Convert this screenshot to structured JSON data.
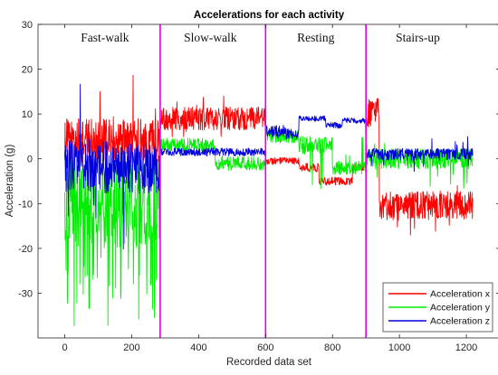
{
  "chart_data": {
    "type": "line",
    "title": "Accelerations for each activity",
    "xlabel": "Recorded data set",
    "ylabel": "Acceleration (g)",
    "xlim": [
      -80,
      1300
    ],
    "ylim": [
      -40,
      30
    ],
    "xticks": [
      0,
      200,
      400,
      600,
      800,
      1000,
      1200
    ],
    "yticks": [
      30,
      20,
      10,
      0,
      -10,
      -20,
      -30
    ],
    "grid": false,
    "legend_position": "bottom-right",
    "boundaries": {
      "values": [
        285,
        600,
        900
      ],
      "color": "#e000e0"
    },
    "activities": [
      {
        "label": "Fast-walk",
        "x": 120
      },
      {
        "label": "Slow-walk",
        "x": 435
      },
      {
        "label": "Resting",
        "x": 750
      },
      {
        "label": "Stairs-up",
        "x": 1055
      }
    ],
    "series": [
      {
        "name": "Acceleration x",
        "color": "#ff0000",
        "segments": [
          {
            "x_start": 0,
            "x_end": 285,
            "mean": 4,
            "noise": 5,
            "spike_prob": 0.06,
            "spike_range": [
              -6,
              19
            ]
          },
          {
            "x_start": 285,
            "x_end": 600,
            "mean": 9,
            "noise": 2.6,
            "spike_prob": 0.03,
            "spike_range": [
              3,
              14
            ]
          },
          {
            "x_start": 600,
            "x_end": 700,
            "mean": -0.5,
            "noise": 0.8
          },
          {
            "x_start": 700,
            "x_end": 760,
            "mean": -2,
            "noise": 1.0
          },
          {
            "x_start": 760,
            "x_end": 860,
            "mean": -5,
            "noise": 0.9
          },
          {
            "x_start": 860,
            "x_end": 900,
            "mean": -2,
            "noise": 0.8
          },
          {
            "x_start": 900,
            "x_end": 940,
            "mean": 10,
            "noise": 3.5
          },
          {
            "x_start": 940,
            "x_end": 1220,
            "mean": -10.5,
            "noise": 3.2,
            "spike_prob": 0.04,
            "spike_range": [
              -18,
              -4
            ]
          }
        ]
      },
      {
        "name": "Acceleration y",
        "color": "#00ee00",
        "segments": [
          {
            "x_start": 0,
            "x_end": 285,
            "mean": -10,
            "noise": 10,
            "spike_prob": 0.12,
            "spike_range": [
              -38,
              -22
            ]
          },
          {
            "x_start": 285,
            "x_end": 450,
            "mean": 3,
            "noise": 1.6
          },
          {
            "x_start": 450,
            "x_end": 600,
            "mean": -1,
            "noise": 1.6,
            "spike_prob": 0.03,
            "spike_range": [
              -6,
              4
            ]
          },
          {
            "x_start": 600,
            "x_end": 700,
            "mean": 5,
            "noise": 1.5
          },
          {
            "x_start": 700,
            "x_end": 800,
            "mean": 3,
            "noise": 2.0,
            "spike_prob": 0.08,
            "spike_range": [
              -7,
              10
            ]
          },
          {
            "x_start": 800,
            "x_end": 900,
            "mean": -2,
            "noise": 1.5,
            "spike_prob": 0.05,
            "spike_range": [
              -6,
              9
            ]
          },
          {
            "x_start": 900,
            "x_end": 1220,
            "mean": 0,
            "noise": 2.3,
            "spike_prob": 0.06,
            "spike_range": [
              -7,
              4
            ]
          }
        ]
      },
      {
        "name": "Acceleration z",
        "color": "#0000dd",
        "segments": [
          {
            "x_start": 0,
            "x_end": 285,
            "mean": -2,
            "noise": 6,
            "spike_prob": 0.03,
            "spike_range": [
              -25,
              22
            ]
          },
          {
            "x_start": 285,
            "x_end": 600,
            "mean": 1.5,
            "noise": 0.9
          },
          {
            "x_start": 600,
            "x_end": 660,
            "mean": 6,
            "noise": 1.5
          },
          {
            "x_start": 660,
            "x_end": 700,
            "mean": 5.5,
            "noise": 1.2
          },
          {
            "x_start": 700,
            "x_end": 780,
            "mean": 9,
            "noise": 0.6
          },
          {
            "x_start": 780,
            "x_end": 830,
            "mean": 7.5,
            "noise": 0.7
          },
          {
            "x_start": 830,
            "x_end": 900,
            "mean": 8.5,
            "noise": 0.6
          },
          {
            "x_start": 900,
            "x_end": 1220,
            "mean": 1,
            "noise": 1.3,
            "spike_prob": 0.03,
            "spike_range": [
              -3,
              5
            ]
          }
        ]
      }
    ]
  }
}
